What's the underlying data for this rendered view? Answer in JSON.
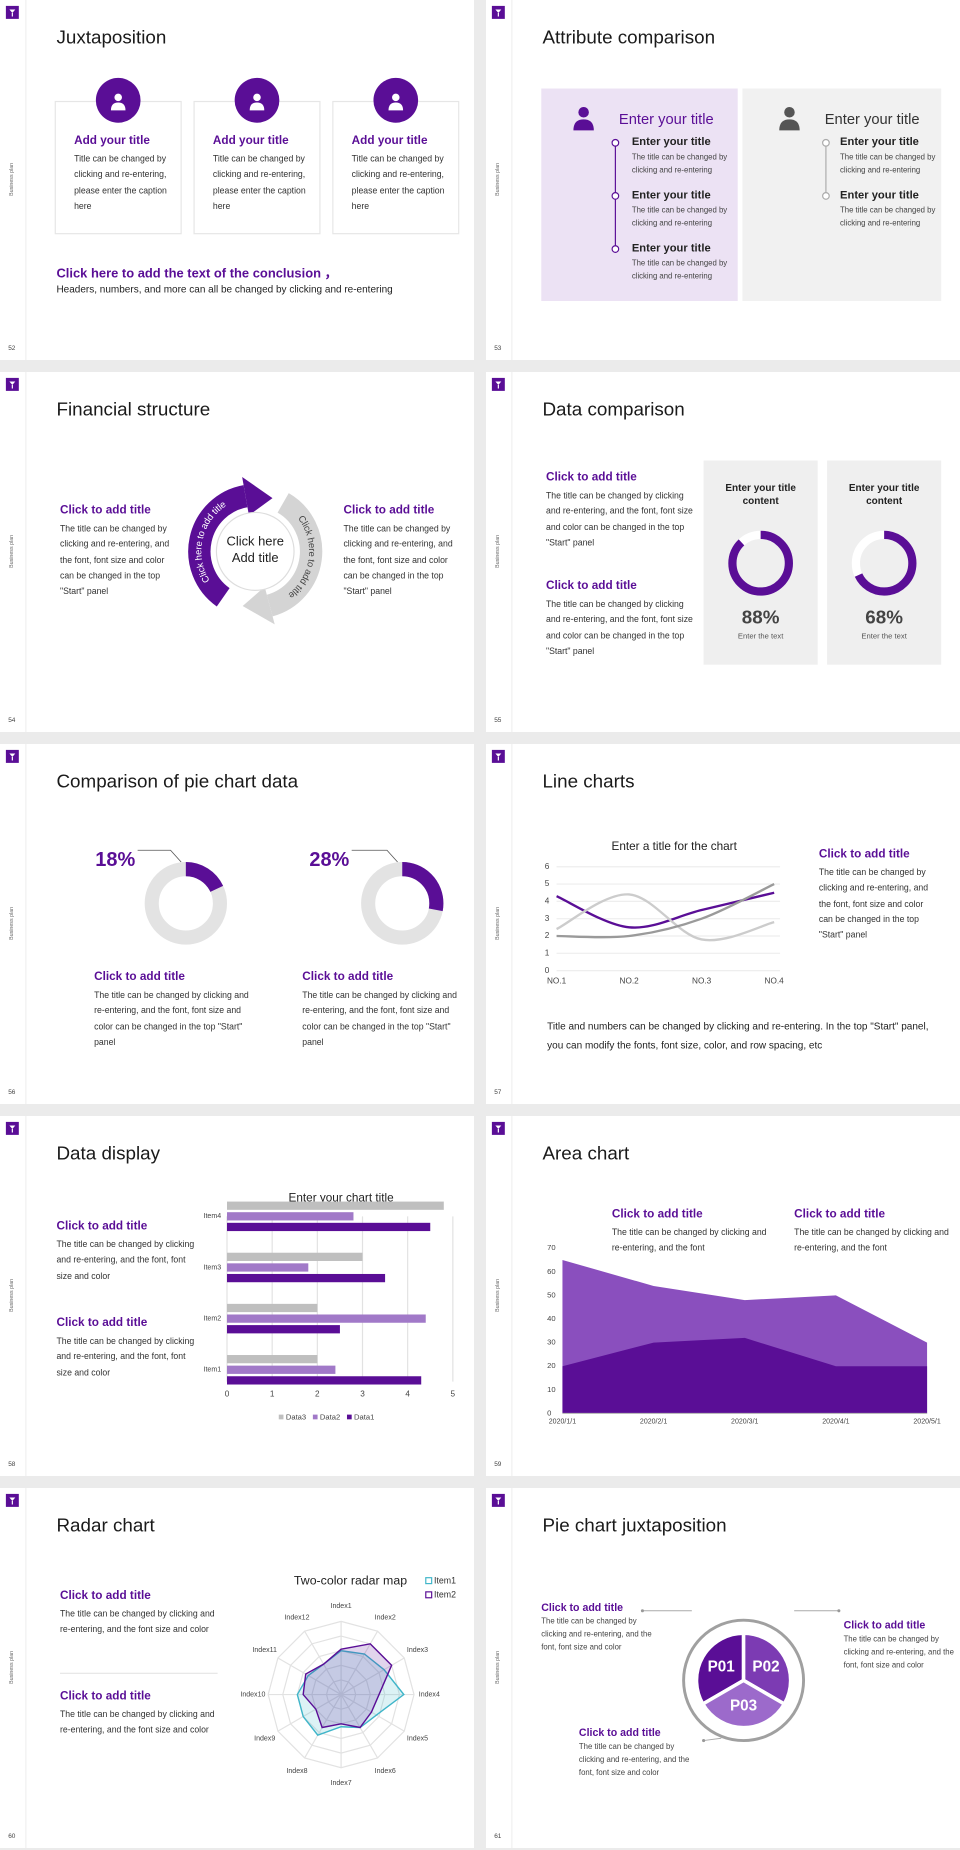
{
  "side_label": "Business plan",
  "slides": [
    {
      "number": "52",
      "title": "Juxtaposition",
      "cards": [
        {
          "title": "Add your title",
          "text": "Title can be changed by clicking and re-entering, please enter the caption here"
        },
        {
          "title": "Add your title",
          "text": "Title can be changed by clicking and re-entering, please enter the caption here"
        },
        {
          "title": "Add your title",
          "text": "Title can be changed by clicking and re-entering, please enter the caption here"
        }
      ],
      "conclusion_title": "Click here to add the text of the conclusion ，",
      "conclusion_text": "Headers, numbers, and more can all be changed by clicking and re-entering"
    },
    {
      "number": "53",
      "title": "Attribute comparison",
      "panels": [
        {
          "heading": "Enter your title",
          "items": [
            {
              "title": "Enter your title",
              "text": "The title can be changed by clicking and re-entering"
            },
            {
              "title": "Enter your title",
              "text": "The title can be changed by clicking and re-entering"
            },
            {
              "title": "Enter your title",
              "text": "The title can be changed by clicking and re-entering"
            }
          ]
        },
        {
          "heading": "Enter your title",
          "items": [
            {
              "title": "Enter your title",
              "text": "The title can be changed by clicking and re-entering"
            },
            {
              "title": "Enter your title",
              "text": "The title can be changed by clicking and re-entering"
            }
          ]
        }
      ]
    },
    {
      "number": "54",
      "title": "Financial structure",
      "blocks": [
        {
          "title": "Click to add title",
          "text": "The title can be changed by clicking and re-entering, and the font, font size and color can be changed in the top \"Start\" panel"
        },
        {
          "title": "Click to add title",
          "text": "The title can be changed by clicking and re-entering, and the font, font size and color can be changed in the top \"Start\" panel"
        }
      ],
      "center": "Click here Add title",
      "arcs": [
        "Click here to add title",
        "Click here to add title"
      ]
    },
    {
      "number": "55",
      "title": "Data comparison",
      "blocks": [
        {
          "title": "Click to add title",
          "text": "The title can be changed by clicking and re-entering, and the font, font size and color can be changed in the top \"Start\" panel"
        },
        {
          "title": "Click to add title",
          "text": "The title can be changed by clicking and re-entering, and the font, font size and color can be changed in the top \"Start\" panel"
        }
      ],
      "cards": [
        {
          "title": "Enter your title content",
          "caption": "Enter the text"
        },
        {
          "title": "Enter your title content",
          "caption": "Enter the text"
        }
      ]
    },
    {
      "number": "56",
      "title": "Comparison of pie chart data",
      "blocks": [
        {
          "title": "Click to add title",
          "text": "The title can be changed by clicking and re-entering, and the font, font size and color can be changed in the top \"Start\" panel"
        },
        {
          "title": "Click to add title",
          "text": "The title can be changed by clicking and re-entering, and the font, font size and color can be changed in the top \"Start\" panel"
        }
      ]
    },
    {
      "number": "57",
      "title": "Line charts",
      "blocks": [
        {
          "title": "Click to add title",
          "text": "The title can be changed by clicking and re-entering, and the font, font size and color can be changed in the top \"Start\" panel"
        }
      ],
      "note": "Title and numbers can be changed by clicking and re-entering. In the top \"Start\" panel, you can modify the fonts, font size, color, and row spacing, etc"
    },
    {
      "number": "58",
      "title": "Data display",
      "blocks": [
        {
          "title": "Click to add title",
          "text": "The title can be changed by clicking and re-entering, and the font, font size and color"
        },
        {
          "title": "Click to add title",
          "text": "The title can be changed by clicking and re-entering, and the font, font size and color"
        }
      ]
    },
    {
      "number": "59",
      "title": "Area chart",
      "blocks": [
        {
          "title": "Click to add title",
          "text": "The title can be changed by clicking and re-entering, and the font"
        },
        {
          "title": "Click to add title",
          "text": "The title can be changed by clicking and re-entering, and the font"
        }
      ]
    },
    {
      "number": "60",
      "title": "Radar chart",
      "blocks": [
        {
          "title": "Click to add title",
          "text": "The title can be changed by clicking and re-entering, and the font size and color"
        },
        {
          "title": "Click to add title",
          "text": "The title can be changed by clicking and re-entering, and the font size and color"
        }
      ]
    },
    {
      "number": "61",
      "title": "Pie chart juxtaposition",
      "segments": [
        "P01",
        "P02",
        "P03"
      ],
      "blocks": [
        {
          "title": "Click to add title",
          "text": "The title can be changed by clicking and re-entering, and the font, font size and color"
        },
        {
          "title": "Click to add title",
          "text": "The title can be changed by clicking and re-entering, and the font, font size and color"
        },
        {
          "title": "Click to add title",
          "text": "The title can be changed by clicking and re-entering, and the font, font size and color"
        }
      ]
    }
  ],
  "chart_data": [
    {
      "type": "donut",
      "values": [
        88,
        68
      ],
      "value_labels": [
        "88%",
        "68%"
      ],
      "color": "#5a0e96"
    },
    {
      "type": "donut",
      "values": [
        18,
        28
      ],
      "value_labels": [
        "18%",
        "28%"
      ],
      "color": "#5a0e96"
    },
    {
      "type": "line",
      "title": "Enter a title for the chart",
      "categories": [
        "NO.1",
        "NO.2",
        "NO.3",
        "NO.4"
      ],
      "series": [
        {
          "color": "#5a0e96",
          "values": [
            4.3,
            2.5,
            3.5,
            4.5
          ]
        },
        {
          "color": "#cccccc",
          "values": [
            2.4,
            4.4,
            1.8,
            2.8
          ]
        },
        {
          "color": "#9a9a9a",
          "values": [
            2,
            2,
            3,
            5
          ]
        }
      ],
      "ylim": [
        0,
        6
      ],
      "yticks": [
        0,
        1,
        2,
        3,
        4,
        5,
        6
      ],
      "grid": true,
      "smooth": true
    },
    {
      "type": "bar",
      "orientation": "horizontal",
      "title": "Enter your chart title",
      "categories": [
        "Item1",
        "Item2",
        "Item3",
        "Item4"
      ],
      "series": [
        {
          "name": "Data3",
          "color": "#bfbfbf",
          "values": [
            2,
            2,
            3,
            4.8
          ]
        },
        {
          "name": "Data2",
          "color": "#a179c8",
          "values": [
            2.4,
            4.4,
            1.8,
            2.8
          ]
        },
        {
          "name": "Data1",
          "color": "#5a0e96",
          "values": [
            4.3,
            2.5,
            3.5,
            4.5
          ]
        }
      ],
      "xlim": [
        0,
        5
      ],
      "xticks": [
        0,
        1,
        2,
        3,
        4,
        5
      ],
      "grid": true,
      "legend": "bottom"
    },
    {
      "type": "area",
      "categories": [
        "2020/1/1",
        "2020/2/1",
        "2020/3/1",
        "2020/4/1",
        "2020/5/1"
      ],
      "series": [
        {
          "color": "#8a4fbe",
          "values": [
            65,
            54,
            48,
            50,
            30
          ]
        },
        {
          "color": "#5a0e96",
          "values": [
            20,
            30,
            32,
            20,
            20
          ]
        }
      ],
      "ylim": [
        0,
        70
      ],
      "yticks": [
        0,
        10,
        20,
        30,
        40,
        50,
        60,
        70
      ]
    },
    {
      "type": "radar",
      "title": "Two-color radar map",
      "categories": [
        "Index1",
        "Index2",
        "Index3",
        "Index4",
        "Index5",
        "Index6",
        "Index7",
        "Index8",
        "Index9",
        "Index10",
        "Index11",
        "Index12"
      ],
      "series": [
        {
          "name": "Item1",
          "color": "#3fb5c9",
          "values": [
            3,
            3.2,
            3.4,
            4.3,
            2.8,
            2.6,
            2.2,
            3.2,
            3,
            3,
            2.6,
            2.4
          ]
        },
        {
          "name": "Item2",
          "color": "#5a0e96",
          "values": [
            3.1,
            4,
            4,
            2.6,
            2.4,
            2.6,
            2,
            2.6,
            2,
            2.6,
            2.8,
            2.4
          ]
        }
      ],
      "ylim": [
        0,
        5
      ],
      "legend": "top-right"
    }
  ]
}
